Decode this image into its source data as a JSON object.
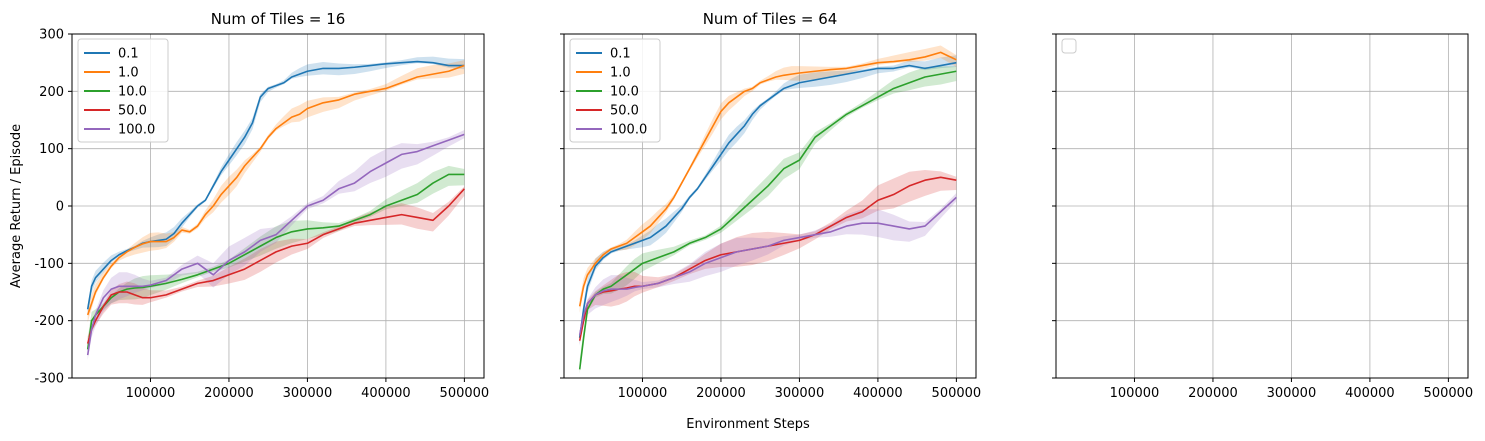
{
  "figure": {
    "ylabel": "Average Return / Episode",
    "xlabel": "Environment Steps"
  },
  "chart_data": [
    {
      "type": "line",
      "title": "Num of Tiles = 16",
      "xlim": [
        0,
        525000
      ],
      "ylim": [
        -300,
        300
      ],
      "xticks": [
        100000,
        200000,
        300000,
        400000,
        500000
      ],
      "yticks": [
        -300,
        -200,
        -100,
        0,
        100,
        200,
        300
      ],
      "grid": true,
      "legend": "upper-left",
      "series": [
        {
          "name": "0.1",
          "color": "#1f77b4",
          "band": 12,
          "x": [
            20000,
            25000,
            30000,
            40000,
            50000,
            60000,
            70000,
            80000,
            90000,
            100000,
            110000,
            120000,
            130000,
            140000,
            150000,
            160000,
            170000,
            180000,
            190000,
            200000,
            210000,
            220000,
            230000,
            240000,
            250000,
            260000,
            270000,
            280000,
            290000,
            300000,
            320000,
            340000,
            360000,
            380000,
            400000,
            420000,
            440000,
            460000,
            480000,
            500000
          ],
          "y": [
            -180,
            -140,
            -125,
            -110,
            -95,
            -85,
            -78,
            -72,
            -65,
            -62,
            -60,
            -58,
            -48,
            -30,
            -15,
            0,
            10,
            35,
            60,
            80,
            100,
            120,
            145,
            190,
            205,
            210,
            215,
            225,
            230,
            235,
            240,
            240,
            242,
            245,
            248,
            250,
            252,
            250,
            245,
            245
          ]
        },
        {
          "name": "1.0",
          "color": "#ff7f0e",
          "band": 16,
          "x": [
            20000,
            25000,
            30000,
            40000,
            50000,
            60000,
            70000,
            80000,
            90000,
            100000,
            110000,
            120000,
            130000,
            140000,
            150000,
            160000,
            170000,
            180000,
            190000,
            200000,
            210000,
            220000,
            230000,
            240000,
            250000,
            260000,
            270000,
            280000,
            290000,
            300000,
            320000,
            340000,
            360000,
            380000,
            400000,
            420000,
            440000,
            460000,
            480000,
            500000
          ],
          "y": [
            -190,
            -170,
            -150,
            -125,
            -105,
            -90,
            -80,
            -72,
            -66,
            -62,
            -62,
            -62,
            -55,
            -42,
            -45,
            -35,
            -15,
            0,
            20,
            35,
            50,
            70,
            85,
            100,
            120,
            135,
            145,
            155,
            160,
            170,
            180,
            185,
            195,
            200,
            205,
            215,
            225,
            230,
            235,
            245
          ]
        },
        {
          "name": "10.0",
          "color": "#2ca02c",
          "band": 20,
          "x": [
            20000,
            25000,
            30000,
            40000,
            50000,
            60000,
            70000,
            80000,
            90000,
            100000,
            120000,
            140000,
            160000,
            180000,
            200000,
            220000,
            240000,
            260000,
            280000,
            300000,
            320000,
            340000,
            360000,
            380000,
            400000,
            420000,
            440000,
            460000,
            480000,
            500000
          ],
          "y": [
            -250,
            -200,
            -190,
            -175,
            -160,
            -150,
            -145,
            -143,
            -142,
            -140,
            -135,
            -128,
            -120,
            -110,
            -100,
            -85,
            -70,
            -55,
            -45,
            -40,
            -38,
            -35,
            -25,
            -15,
            0,
            10,
            20,
            40,
            55,
            55
          ]
        },
        {
          "name": "50.0",
          "color": "#d62728",
          "band": 20,
          "x": [
            20000,
            25000,
            30000,
            40000,
            50000,
            60000,
            70000,
            80000,
            90000,
            100000,
            120000,
            140000,
            160000,
            180000,
            200000,
            220000,
            240000,
            260000,
            280000,
            300000,
            320000,
            340000,
            360000,
            380000,
            400000,
            420000,
            440000,
            460000,
            480000,
            500000
          ],
          "y": [
            -240,
            -215,
            -200,
            -175,
            -155,
            -150,
            -150,
            -155,
            -160,
            -160,
            -155,
            -145,
            -135,
            -130,
            -120,
            -110,
            -95,
            -80,
            -70,
            -65,
            -50,
            -40,
            -30,
            -25,
            -20,
            -15,
            -20,
            -25,
            0,
            30
          ]
        },
        {
          "name": "100.0",
          "color": "#9467bd",
          "band": 25,
          "x": [
            20000,
            25000,
            30000,
            40000,
            50000,
            60000,
            70000,
            80000,
            90000,
            100000,
            120000,
            140000,
            160000,
            180000,
            200000,
            220000,
            240000,
            260000,
            280000,
            300000,
            320000,
            340000,
            360000,
            380000,
            400000,
            420000,
            440000,
            460000,
            480000,
            500000
          ],
          "y": [
            -260,
            -215,
            -190,
            -160,
            -145,
            -140,
            -140,
            -140,
            -140,
            -138,
            -130,
            -110,
            -100,
            -120,
            -95,
            -80,
            -60,
            -50,
            -25,
            0,
            10,
            30,
            40,
            60,
            75,
            90,
            95,
            105,
            115,
            125
          ]
        }
      ]
    },
    {
      "type": "line",
      "title": "Num of Tiles = 64",
      "xlim": [
        0,
        525000
      ],
      "ylim": [
        -300,
        300
      ],
      "xticks": [
        100000,
        200000,
        300000,
        400000,
        500000
      ],
      "yticks": [
        -300,
        -200,
        -100,
        0,
        100,
        200,
        300
      ],
      "grid": true,
      "legend": "upper-left",
      "series": [
        {
          "name": "0.1",
          "color": "#1f77b4",
          "band": 14,
          "x": [
            20000,
            25000,
            30000,
            40000,
            50000,
            60000,
            70000,
            80000,
            90000,
            100000,
            110000,
            120000,
            130000,
            140000,
            150000,
            160000,
            170000,
            180000,
            190000,
            200000,
            210000,
            220000,
            230000,
            240000,
            250000,
            260000,
            270000,
            280000,
            290000,
            300000,
            320000,
            340000,
            360000,
            380000,
            400000,
            420000,
            440000,
            460000,
            480000,
            500000
          ],
          "y": [
            -230,
            -180,
            -140,
            -105,
            -90,
            -80,
            -75,
            -70,
            -65,
            -60,
            -55,
            -45,
            -35,
            -20,
            -5,
            15,
            30,
            50,
            70,
            90,
            110,
            125,
            140,
            160,
            175,
            185,
            195,
            205,
            210,
            215,
            220,
            225,
            230,
            235,
            240,
            240,
            245,
            240,
            245,
            250
          ]
        },
        {
          "name": "1.0",
          "color": "#ff7f0e",
          "band": 14,
          "x": [
            20000,
            25000,
            30000,
            40000,
            50000,
            60000,
            70000,
            80000,
            90000,
            100000,
            110000,
            120000,
            130000,
            140000,
            150000,
            160000,
            170000,
            180000,
            190000,
            200000,
            210000,
            220000,
            230000,
            240000,
            250000,
            260000,
            270000,
            280000,
            290000,
            300000,
            320000,
            340000,
            360000,
            380000,
            400000,
            420000,
            440000,
            460000,
            480000,
            500000
          ],
          "y": [
            -175,
            -140,
            -120,
            -100,
            -85,
            -75,
            -70,
            -65,
            -55,
            -45,
            -35,
            -20,
            -5,
            15,
            40,
            65,
            90,
            115,
            140,
            165,
            180,
            190,
            200,
            205,
            215,
            220,
            225,
            228,
            230,
            232,
            235,
            238,
            240,
            245,
            250,
            252,
            255,
            260,
            268,
            255
          ]
        },
        {
          "name": "10.0",
          "color": "#2ca02c",
          "band": 18,
          "x": [
            20000,
            25000,
            30000,
            40000,
            50000,
            60000,
            70000,
            80000,
            90000,
            100000,
            120000,
            140000,
            160000,
            180000,
            200000,
            220000,
            240000,
            260000,
            280000,
            300000,
            320000,
            340000,
            360000,
            380000,
            400000,
            420000,
            440000,
            460000,
            480000,
            500000
          ],
          "y": [
            -285,
            -230,
            -180,
            -155,
            -145,
            -140,
            -130,
            -120,
            -110,
            -100,
            -90,
            -80,
            -65,
            -55,
            -40,
            -15,
            10,
            35,
            65,
            80,
            120,
            140,
            160,
            175,
            190,
            205,
            215,
            225,
            230,
            235
          ]
        },
        {
          "name": "50.0",
          "color": "#d62728",
          "band": 28,
          "x": [
            20000,
            25000,
            30000,
            40000,
            50000,
            60000,
            70000,
            80000,
            90000,
            100000,
            120000,
            140000,
            160000,
            180000,
            200000,
            220000,
            240000,
            260000,
            280000,
            300000,
            320000,
            340000,
            360000,
            380000,
            400000,
            420000,
            440000,
            460000,
            480000,
            500000
          ],
          "y": [
            -235,
            -200,
            -170,
            -155,
            -150,
            -148,
            -145,
            -143,
            -140,
            -140,
            -135,
            -125,
            -110,
            -95,
            -85,
            -80,
            -75,
            -70,
            -65,
            -60,
            -50,
            -35,
            -20,
            -10,
            10,
            20,
            35,
            45,
            50,
            45
          ]
        },
        {
          "name": "100.0",
          "color": "#9467bd",
          "band": 25,
          "x": [
            20000,
            25000,
            30000,
            40000,
            50000,
            60000,
            70000,
            80000,
            90000,
            100000,
            120000,
            140000,
            160000,
            180000,
            200000,
            220000,
            240000,
            260000,
            280000,
            300000,
            320000,
            340000,
            360000,
            380000,
            400000,
            420000,
            440000,
            460000,
            480000,
            500000
          ],
          "y": [
            -225,
            -190,
            -170,
            -155,
            -148,
            -145,
            -145,
            -145,
            -142,
            -140,
            -135,
            -125,
            -115,
            -100,
            -90,
            -80,
            -75,
            -70,
            -60,
            -55,
            -50,
            -45,
            -35,
            -30,
            -30,
            -35,
            -40,
            -35,
            -10,
            15
          ]
        }
      ]
    },
    {
      "type": "line",
      "title": "",
      "xlim": [
        0,
        525000
      ],
      "ylim": [
        -300,
        300
      ],
      "xticks": [
        100000,
        200000,
        300000,
        400000,
        500000
      ],
      "yticks": [
        -300,
        -200,
        -100,
        0,
        100,
        200,
        300
      ],
      "grid": true,
      "legend": "upper-left",
      "series": []
    }
  ]
}
